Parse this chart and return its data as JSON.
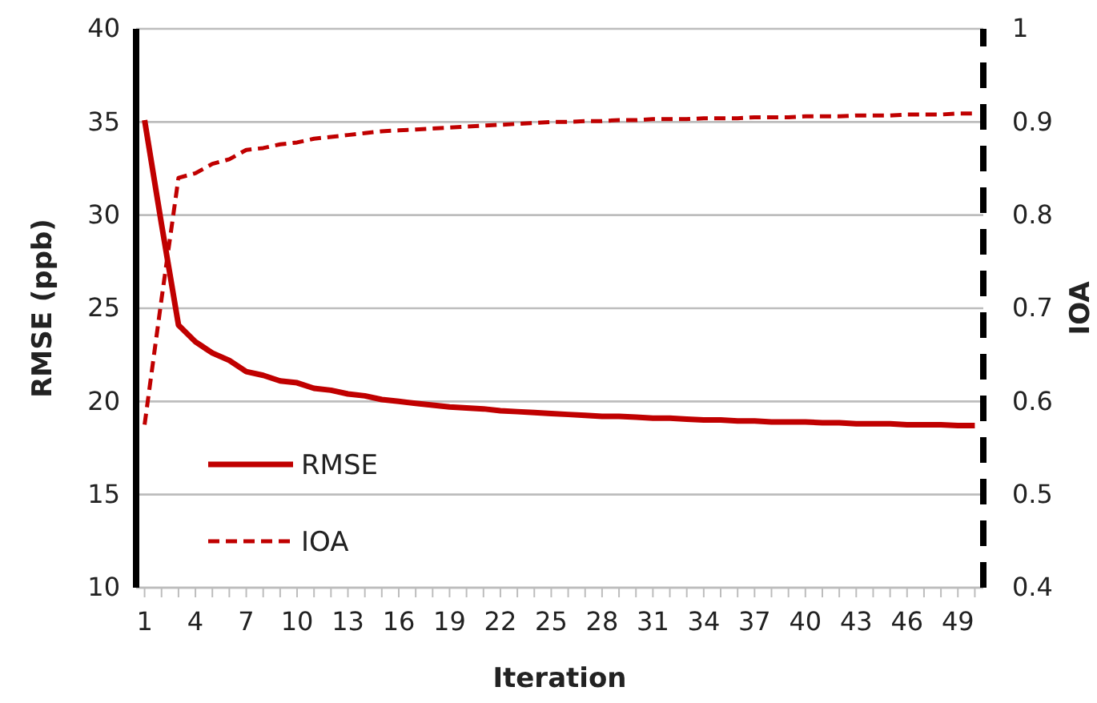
{
  "chart_data": {
    "type": "line",
    "xlabel": "Iteration",
    "ylabel": "RMSE (ppb)",
    "y2label": "IOA",
    "categories": [
      "1",
      null,
      null,
      "4",
      null,
      null,
      "7",
      null,
      null,
      "10",
      null,
      null,
      "13",
      null,
      null,
      "16",
      null,
      null,
      "19",
      null,
      null,
      "22",
      null,
      null,
      "25",
      null,
      null,
      "28",
      null,
      null,
      "31",
      null,
      null,
      "34",
      null,
      null,
      "37",
      null,
      null,
      "40",
      null,
      null,
      "43",
      null,
      null,
      "46",
      null,
      null,
      "49",
      null
    ],
    "series": [
      {
        "name": "RMSE",
        "color": "#c00000",
        "line_style": "solid",
        "values": [
          35.1,
          29.5,
          24.1,
          23.2,
          22.6,
          22.2,
          21.6,
          21.4,
          21.1,
          21.0,
          20.7,
          20.6,
          20.4,
          20.3,
          20.1,
          20.0,
          19.9,
          19.8,
          19.7,
          19.65,
          19.6,
          19.5,
          19.45,
          19.4,
          19.35,
          19.3,
          19.25,
          19.2,
          19.2,
          19.15,
          19.1,
          19.1,
          19.05,
          19.0,
          19.0,
          18.95,
          18.95,
          18.9,
          18.9,
          18.9,
          18.85,
          18.85,
          18.8,
          18.8,
          18.8,
          18.75,
          18.75,
          18.75,
          18.7,
          18.7
        ]
      },
      {
        "name": "IOA",
        "color": "#c00000",
        "line_style": "dashed",
        "axis": "y2",
        "values": [
          0.575,
          0.71,
          0.84,
          0.845,
          0.855,
          0.86,
          0.87,
          0.872,
          0.876,
          0.878,
          0.882,
          0.884,
          0.886,
          0.888,
          0.89,
          0.891,
          0.892,
          0.893,
          0.894,
          0.895,
          0.896,
          0.897,
          0.898,
          0.899,
          0.9,
          0.9,
          0.901,
          0.901,
          0.902,
          0.902,
          0.903,
          0.903,
          0.903,
          0.904,
          0.904,
          0.904,
          0.905,
          0.905,
          0.905,
          0.906,
          0.906,
          0.906,
          0.907,
          0.907,
          0.907,
          0.908,
          0.908,
          0.908,
          0.909,
          0.909
        ]
      }
    ],
    "ylim": [
      10,
      40
    ],
    "yticks": [
      10,
      15,
      20,
      25,
      30,
      35,
      40
    ],
    "y2lim": [
      0.4,
      1
    ],
    "y2ticks": [
      0.4,
      0.5,
      0.6,
      0.7,
      0.8,
      0.9,
      1
    ],
    "grid": "y",
    "legend": "bottom left",
    "marker": "none"
  }
}
